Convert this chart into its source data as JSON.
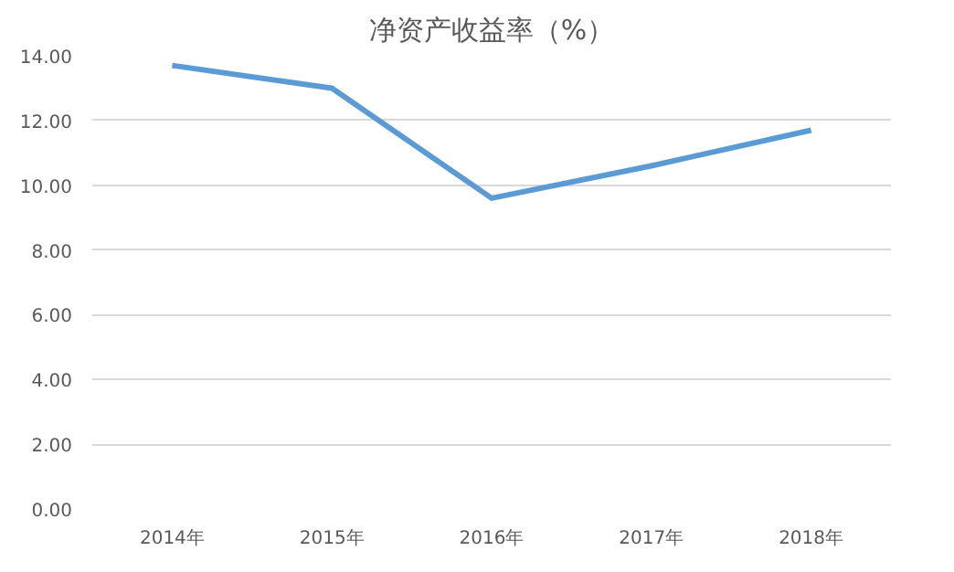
{
  "chart_data": {
    "type": "line",
    "title": "净资产收益率（%）",
    "categories": [
      "2014年",
      "2015年",
      "2016年",
      "2017年",
      "2018年"
    ],
    "series": [
      {
        "color": "#5b9bd5",
        "values": [
          13.7,
          13.0,
          9.6,
          10.6,
          11.7
        ]
      }
    ],
    "ylim": [
      0,
      14
    ],
    "yticks": [
      {
        "value": 0,
        "label": "0.00"
      },
      {
        "value": 2,
        "label": "2.00"
      },
      {
        "value": 4,
        "label": "4.00"
      },
      {
        "value": 6,
        "label": "6.00"
      },
      {
        "value": 8,
        "label": "8.00"
      },
      {
        "value": 10,
        "label": "10.00"
      },
      {
        "value": 12,
        "label": "12.00"
      },
      {
        "value": 14,
        "label": "14.00"
      }
    ],
    "grid": "y",
    "marker": "none",
    "line_style": "solid"
  }
}
